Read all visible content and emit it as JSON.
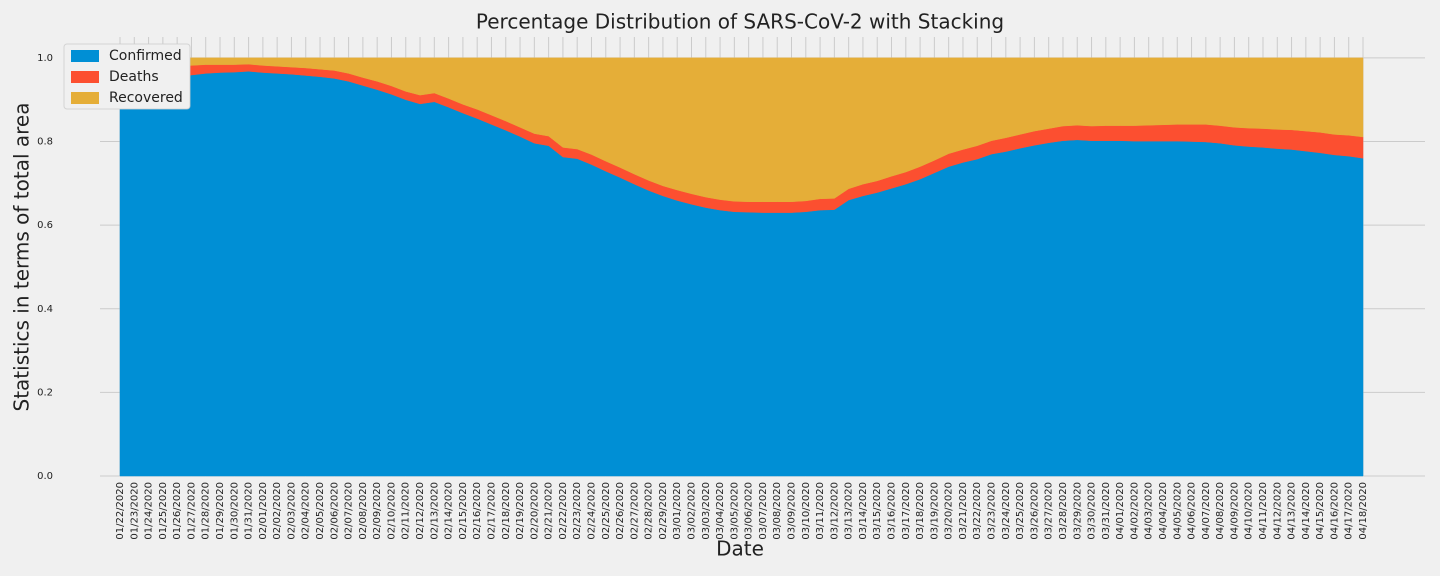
{
  "chart_data": {
    "type": "stacked_area",
    "title": "Percentage Distribution of SARS-CoV-2 with Stacking",
    "xlabel": "Date",
    "ylabel": "Statistics in terms of total area",
    "categories": [
      "01/22/2020",
      "01/23/2020",
      "01/24/2020",
      "01/25/2020",
      "01/26/2020",
      "01/27/2020",
      "01/28/2020",
      "01/29/2020",
      "01/30/2020",
      "01/31/2020",
      "02/01/2020",
      "02/02/2020",
      "02/03/2020",
      "02/04/2020",
      "02/05/2020",
      "02/06/2020",
      "02/07/2020",
      "02/08/2020",
      "02/09/2020",
      "02/10/2020",
      "02/11/2020",
      "02/12/2020",
      "02/13/2020",
      "02/14/2020",
      "02/15/2020",
      "02/16/2020",
      "02/17/2020",
      "02/18/2020",
      "02/19/2020",
      "02/20/2020",
      "02/21/2020",
      "02/22/2020",
      "02/23/2020",
      "02/24/2020",
      "02/25/2020",
      "02/26/2020",
      "02/27/2020",
      "02/28/2020",
      "02/29/2020",
      "03/01/2020",
      "03/02/2020",
      "03/03/2020",
      "03/04/2020",
      "03/05/2020",
      "03/06/2020",
      "03/07/2020",
      "03/08/2020",
      "03/09/2020",
      "03/10/2020",
      "03/11/2020",
      "03/12/2020",
      "03/13/2020",
      "03/14/2020",
      "03/15/2020",
      "03/16/2020",
      "03/17/2020",
      "03/18/2020",
      "03/19/2020",
      "03/20/2020",
      "03/21/2020",
      "03/22/2020",
      "03/23/2020",
      "03/24/2020",
      "03/25/2020",
      "03/26/2020",
      "03/27/2020",
      "03/28/2020",
      "03/29/2020",
      "03/30/2020",
      "03/31/2020",
      "04/01/2020",
      "04/02/2020",
      "04/03/2020",
      "04/04/2020",
      "04/05/2020",
      "04/06/2020",
      "04/07/2020",
      "04/08/2020",
      "04/09/2020",
      "04/10/2020",
      "04/11/2020",
      "04/12/2020",
      "04/13/2020",
      "04/14/2020",
      "04/15/2020",
      "04/16/2020",
      "04/17/2020",
      "04/18/2020"
    ],
    "series": [
      {
        "name": "Confirmed",
        "color": "#008fd5",
        "values": [
          0.94,
          0.945,
          0.95,
          0.953,
          0.956,
          0.959,
          0.963,
          0.965,
          0.966,
          0.968,
          0.965,
          0.963,
          0.961,
          0.958,
          0.955,
          0.951,
          0.944,
          0.934,
          0.924,
          0.913,
          0.9,
          0.89,
          0.895,
          0.882,
          0.868,
          0.855,
          0.841,
          0.827,
          0.812,
          0.796,
          0.79,
          0.763,
          0.759,
          0.745,
          0.729,
          0.714,
          0.698,
          0.683,
          0.67,
          0.659,
          0.65,
          0.642,
          0.636,
          0.632,
          0.631,
          0.63,
          0.63,
          0.63,
          0.632,
          0.636,
          0.637,
          0.66,
          0.67,
          0.678,
          0.688,
          0.698,
          0.71,
          0.725,
          0.74,
          0.75,
          0.758,
          0.77,
          0.776,
          0.784,
          0.791,
          0.797,
          0.802,
          0.804,
          0.802,
          0.802,
          0.802,
          0.801,
          0.801,
          0.801,
          0.801,
          0.8,
          0.799,
          0.796,
          0.791,
          0.788,
          0.786,
          0.783,
          0.781,
          0.777,
          0.773,
          0.768,
          0.765,
          0.76
        ]
      },
      {
        "name": "Deaths",
        "color": "#fc4f30",
        "values": [
          0.03,
          0.029,
          0.028,
          0.027,
          0.025,
          0.023,
          0.021,
          0.019,
          0.018,
          0.017,
          0.017,
          0.017,
          0.017,
          0.018,
          0.018,
          0.019,
          0.019,
          0.019,
          0.02,
          0.02,
          0.02,
          0.021,
          0.021,
          0.021,
          0.021,
          0.022,
          0.022,
          0.022,
          0.022,
          0.023,
          0.023,
          0.023,
          0.023,
          0.024,
          0.024,
          0.024,
          0.024,
          0.024,
          0.024,
          0.025,
          0.025,
          0.025,
          0.025,
          0.025,
          0.025,
          0.026,
          0.026,
          0.026,
          0.026,
          0.027,
          0.027,
          0.027,
          0.028,
          0.028,
          0.029,
          0.029,
          0.03,
          0.03,
          0.031,
          0.031,
          0.032,
          0.032,
          0.033,
          0.033,
          0.034,
          0.034,
          0.035,
          0.035,
          0.035,
          0.036,
          0.036,
          0.037,
          0.038,
          0.039,
          0.04,
          0.041,
          0.042,
          0.042,
          0.043,
          0.044,
          0.045,
          0.046,
          0.047,
          0.048,
          0.049,
          0.049,
          0.05,
          0.051
        ]
      },
      {
        "name": "Recovered",
        "color": "#e5ae38",
        "values": [
          0.03,
          0.026,
          0.022,
          0.02,
          0.019,
          0.018,
          0.016,
          0.016,
          0.016,
          0.015,
          0.018,
          0.02,
          0.022,
          0.024,
          0.027,
          0.03,
          0.037,
          0.047,
          0.056,
          0.067,
          0.08,
          0.089,
          0.084,
          0.097,
          0.111,
          0.123,
          0.137,
          0.151,
          0.166,
          0.181,
          0.187,
          0.214,
          0.218,
          0.231,
          0.247,
          0.262,
          0.278,
          0.293,
          0.306,
          0.316,
          0.325,
          0.333,
          0.339,
          0.343,
          0.344,
          0.344,
          0.344,
          0.344,
          0.342,
          0.337,
          0.336,
          0.313,
          0.302,
          0.294,
          0.283,
          0.273,
          0.26,
          0.245,
          0.229,
          0.219,
          0.21,
          0.198,
          0.191,
          0.183,
          0.175,
          0.169,
          0.163,
          0.161,
          0.163,
          0.162,
          0.162,
          0.162,
          0.161,
          0.16,
          0.159,
          0.159,
          0.159,
          0.162,
          0.166,
          0.168,
          0.169,
          0.171,
          0.172,
          0.175,
          0.178,
          0.183,
          0.185,
          0.189
        ]
      }
    ],
    "ylim": [
      0,
      1.05
    ],
    "yticks": [
      {
        "value": 0,
        "label": "0.0"
      },
      0.2,
      0.4,
      0.6,
      0.8,
      {
        "value": 1,
        "label": "1.0"
      }
    ],
    "grid": true,
    "legend": "upper left"
  }
}
